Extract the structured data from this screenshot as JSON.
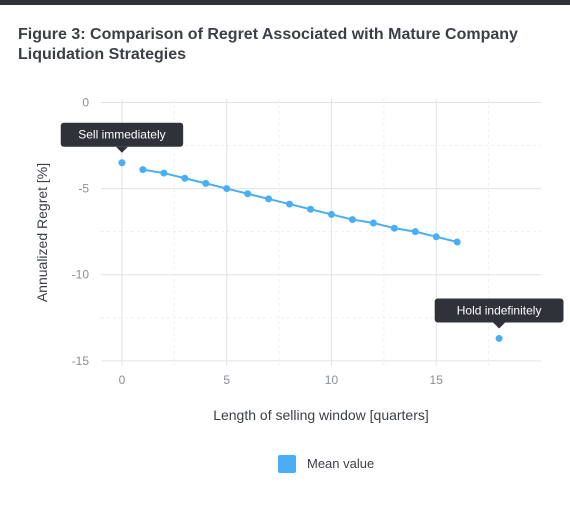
{
  "title": "Figure 3: Comparison of Regret Associated with Mature Company Liquidation Strategies",
  "chart_data": {
    "type": "line",
    "xlabel": "Length of selling window [quarters]",
    "ylabel": "Annualized Regret [%]",
    "xlim": [
      -1,
      20
    ],
    "ylim": [
      -15.3,
      0.2
    ],
    "xticks": [
      0,
      5,
      10,
      15
    ],
    "yticks": [
      0,
      -5,
      -10,
      -15
    ],
    "grid": true,
    "legend": "bottom",
    "series": [
      {
        "name": "Mean value",
        "color": "#4aaef5",
        "points": [
          {
            "x": 1,
            "y": -3.9
          },
          {
            "x": 2,
            "y": -4.1
          },
          {
            "x": 3,
            "y": -4.4
          },
          {
            "x": 4,
            "y": -4.7
          },
          {
            "x": 5,
            "y": -5.0
          },
          {
            "x": 6,
            "y": -5.3
          },
          {
            "x": 7,
            "y": -5.6
          },
          {
            "x": 8,
            "y": -5.9
          },
          {
            "x": 9,
            "y": -6.2
          },
          {
            "x": 10,
            "y": -6.5
          },
          {
            "x": 11,
            "y": -6.8
          },
          {
            "x": 12,
            "y": -7.0
          },
          {
            "x": 13,
            "y": -7.3
          },
          {
            "x": 14,
            "y": -7.5
          },
          {
            "x": 15,
            "y": -7.8
          },
          {
            "x": 16,
            "y": -8.1
          }
        ]
      }
    ],
    "annotated_points": [
      {
        "label": "Sell immediately",
        "x": 0,
        "y": -3.5
      },
      {
        "label": "Hold indefinitely",
        "x": 18,
        "y": -13.7
      }
    ]
  }
}
